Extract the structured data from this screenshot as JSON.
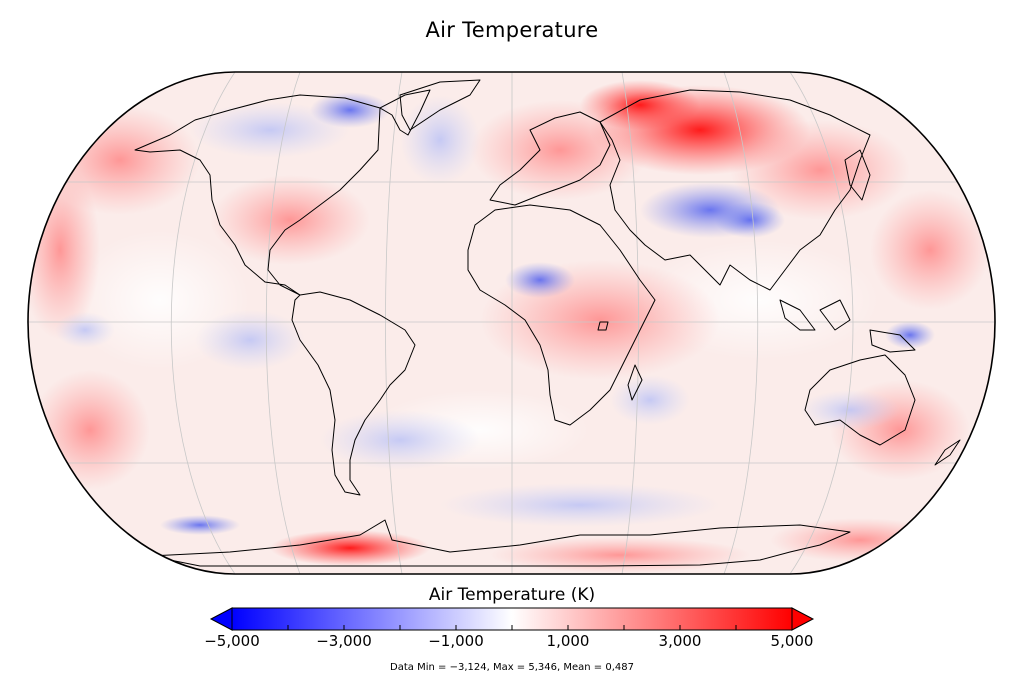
{
  "title": "Air Temperature",
  "colorbar": {
    "title": "Air Temperature (K)",
    "min": -5,
    "max": 5,
    "ticks": [
      {
        "value": -5,
        "label": "−5,000"
      },
      {
        "value": -3,
        "label": "−3,000"
      },
      {
        "value": -1,
        "label": "−1,000"
      },
      {
        "value": 1,
        "label": "1,000"
      },
      {
        "value": 3,
        "label": "3,000"
      },
      {
        "value": 5,
        "label": "5,000"
      }
    ],
    "low_color": "#0000ff",
    "mid_color": "#ffffff",
    "high_color": "#ff0000"
  },
  "stats": "Data Min = −3,124, Max = 5,346, Mean = 0,487",
  "map": {
    "projection": "Robinson",
    "variable": "Air Temperature anomaly",
    "background_color": "#fbecea",
    "outline_color": "#000000",
    "grid_color": "#c8c8c8"
  }
}
